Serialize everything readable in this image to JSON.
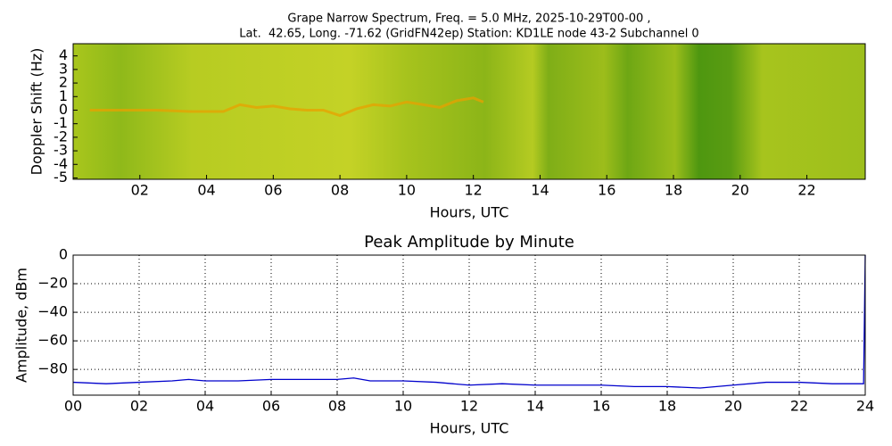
{
  "chart_data": [
    {
      "type": "spectrogram",
      "title": [
        "Grape Narrow Spectrum, Freq. = 5.0 MHz, 2025-10-29T00-00 ,",
        "Lat.  42.65, Long. -71.62 (GridFN42ep) Station: KD1LE node 43-2 Subchannel 0"
      ],
      "x_label": "Hours, UTC",
      "y_label": "Doppler Shift (Hz)",
      "xlim": [
        0,
        23.75
      ],
      "ylim": [
        -5.1,
        4.9
      ],
      "xticks": [
        {
          "value": 2,
          "label": "02"
        },
        {
          "value": 4,
          "label": "04"
        },
        {
          "value": 6,
          "label": "06"
        },
        {
          "value": 8,
          "label": "08"
        },
        {
          "value": 10,
          "label": "10"
        },
        {
          "value": 12,
          "label": "12"
        },
        {
          "value": 14,
          "label": "14"
        },
        {
          "value": 16,
          "label": "16"
        },
        {
          "value": 18,
          "label": "18"
        },
        {
          "value": 20,
          "label": "20"
        },
        {
          "value": 22,
          "label": "22"
        }
      ],
      "yticks": [
        -5,
        -4,
        -3,
        -2,
        -1,
        0,
        1,
        2,
        3,
        4
      ],
      "grid": false,
      "series": [
        {
          "color": "#e8a000",
          "x": [
            0.5,
            1.5,
            2.5,
            3.5,
            4.5,
            5,
            5.5,
            6,
            6.5,
            7,
            7.5,
            8,
            8.5,
            9,
            9.5,
            10,
            10.5,
            11,
            11.5,
            12,
            12.3
          ],
          "values": [
            0,
            0,
            0,
            -0.1,
            -0.1,
            0.4,
            0.2,
            0.3,
            0.1,
            0,
            0,
            -0.4,
            0.1,
            0.4,
            0.3,
            0.6,
            0.4,
            0.2,
            0.7,
            0.9,
            0.6
          ]
        }
      ]
    },
    {
      "type": "line",
      "title": "Peak Amplitude by Minute",
      "x_label": "Hours, UTC",
      "y_label": "Amplitude, dBm",
      "xlim": [
        0,
        24
      ],
      "ylim": [
        -98,
        0
      ],
      "xticks": [
        {
          "value": 0,
          "label": "00"
        },
        {
          "value": 2,
          "label": "02"
        },
        {
          "value": 4,
          "label": "04"
        },
        {
          "value": 6,
          "label": "06"
        },
        {
          "value": 8,
          "label": "08"
        },
        {
          "value": 10,
          "label": "10"
        },
        {
          "value": 12,
          "label": "12"
        },
        {
          "value": 14,
          "label": "14"
        },
        {
          "value": 16,
          "label": "16"
        },
        {
          "value": 18,
          "label": "18"
        },
        {
          "value": 20,
          "label": "20"
        },
        {
          "value": 22,
          "label": "22"
        },
        {
          "value": 24,
          "label": "24"
        }
      ],
      "yticks": [
        {
          "value": -80,
          "label": "−80"
        },
        {
          "value": -60,
          "label": "−60"
        },
        {
          "value": -40,
          "label": "−40"
        },
        {
          "value": -20,
          "label": "−20"
        },
        0
      ],
      "grid": true,
      "series": [
        {
          "color": "#0000cc",
          "x": [
            0,
            1,
            2,
            3,
            3.5,
            4,
            5,
            6,
            7,
            8,
            8.5,
            9,
            10,
            11,
            12,
            13,
            14,
            15,
            16,
            17,
            18,
            19,
            20,
            21,
            22,
            23,
            23.95,
            24
          ],
          "values": [
            -89,
            -90,
            -89,
            -88,
            -87,
            -88,
            -88,
            -87,
            -87,
            -87,
            -86,
            -88,
            -88,
            -89,
            -91,
            -90,
            -91,
            -91,
            -91,
            -92,
            -92,
            -93,
            -91,
            -89,
            -89,
            -90,
            -90,
            0
          ]
        }
      ]
    }
  ]
}
